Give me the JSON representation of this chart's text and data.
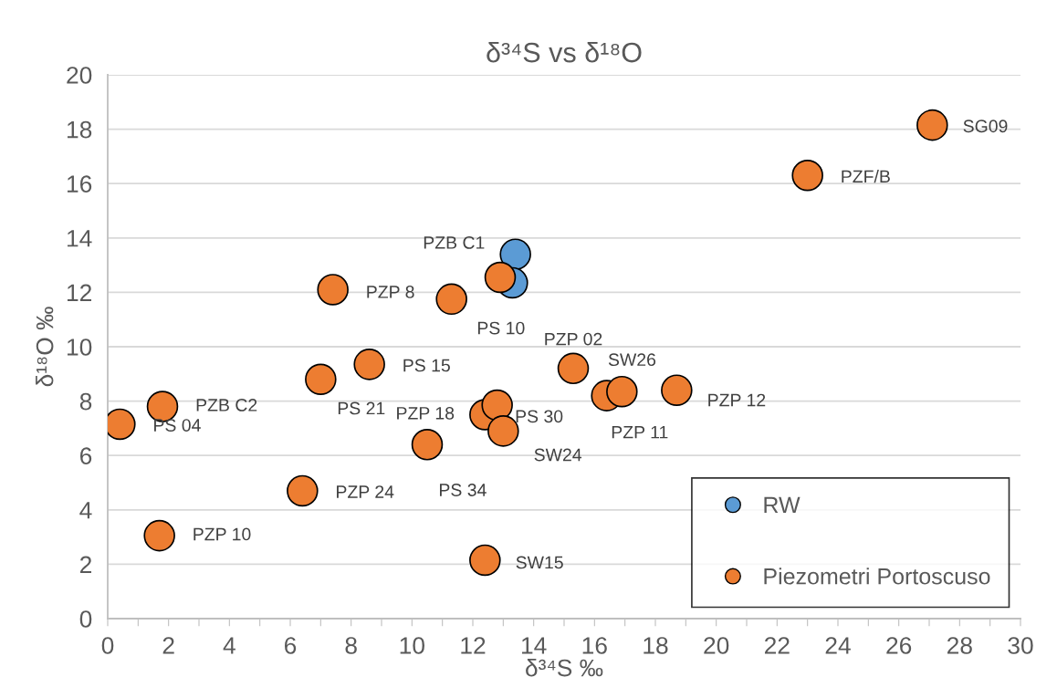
{
  "chart_data": {
    "type": "scatter",
    "title": "δ³⁴S vs δ¹⁸O",
    "xlabel": "δ³⁴S ‰",
    "ylabel": "δ¹⁸O ‰",
    "xlim": [
      0,
      30
    ],
    "ylim": [
      0,
      20
    ],
    "xticks": [
      0,
      {
        "value": 1,
        "label": null
      },
      2,
      {
        "value": 3,
        "label": null
      },
      4,
      {
        "value": 5,
        "label": null
      },
      6,
      {
        "value": 7,
        "label": null
      },
      8,
      {
        "value": 9,
        "label": null
      },
      10,
      {
        "value": 11,
        "label": null
      },
      12,
      {
        "value": 13,
        "label": null
      },
      14,
      {
        "value": 15,
        "label": null
      },
      16,
      {
        "value": 17,
        "label": null
      },
      18,
      {
        "value": 19,
        "label": null
      },
      20,
      {
        "value": 21,
        "label": null
      },
      22,
      {
        "value": 23,
        "label": null
      },
      24,
      {
        "value": 25,
        "label": null
      },
      26,
      {
        "value": 27,
        "label": null
      },
      28,
      {
        "value": 29,
        "label": null
      },
      30
    ],
    "yticks": [
      0,
      2,
      4,
      6,
      8,
      10,
      12,
      14,
      16,
      18,
      20
    ],
    "grid": "y",
    "legend": "bottom right",
    "marker": "circle",
    "series": [
      {
        "name": "RW",
        "color": "#5b9bd5",
        "x": [
          13.4,
          13.3
        ],
        "values": [
          13.4,
          12.35
        ]
      },
      {
        "name": "Piezometri Portoscuso",
        "color": "#ed7d31",
        "x": [
          0.4,
          1.8,
          1.7,
          6.4,
          7.0,
          7.4,
          8.6,
          10.5,
          11.3,
          12.4,
          12.4,
          12.8,
          13.0,
          12.9,
          15.3,
          16.4,
          16.9,
          18.7,
          23.0,
          27.1
        ],
        "values": [
          7.15,
          7.8,
          3.05,
          4.7,
          8.8,
          12.1,
          9.35,
          6.4,
          11.75,
          2.15,
          7.5,
          7.85,
          6.9,
          12.55,
          9.2,
          8.2,
          8.35,
          8.4,
          16.3,
          18.15
        ]
      }
    ],
    "annotations": [
      {
        "text": "PZB C1",
        "x": 13.4,
        "y": 13.4
      },
      {
        "text": "PZB C2",
        "x": 1.8,
        "y": 7.8
      },
      {
        "text": "PS 04",
        "x": 0.4,
        "y": 7.15
      },
      {
        "text": "PZP 10",
        "x": 1.7,
        "y": 3.05
      },
      {
        "text": "PZP 24",
        "x": 6.4,
        "y": 4.7
      },
      {
        "text": "PS 21",
        "x": 7.0,
        "y": 8.8
      },
      {
        "text": "PZP 8",
        "x": 7.4,
        "y": 12.1
      },
      {
        "text": "PS 15",
        "x": 8.6,
        "y": 9.35
      },
      {
        "text": "PS 34",
        "x": 10.5,
        "y": 6.4
      },
      {
        "text": "PS 10",
        "x": 11.3,
        "y": 11.75
      },
      {
        "text": "PZP 18",
        "x": 12.4,
        "y": 7.5
      },
      {
        "text": "PS 30",
        "x": 12.8,
        "y": 7.85
      },
      {
        "text": "SW24",
        "x": 13.0,
        "y": 6.9
      },
      {
        "text": "SW15",
        "x": 12.4,
        "y": 2.15
      },
      {
        "text": "PZP 02",
        "x": 15.3,
        "y": 9.2
      },
      {
        "text": "PZP 11",
        "x": 16.4,
        "y": 8.2
      },
      {
        "text": "SW26",
        "x": 16.9,
        "y": 8.35
      },
      {
        "text": "PZP 12",
        "x": 18.7,
        "y": 8.4
      },
      {
        "text": "PZF/B",
        "x": 23.0,
        "y": 16.3
      },
      {
        "text": "SG09",
        "x": 27.1,
        "y": 18.15
      }
    ]
  }
}
